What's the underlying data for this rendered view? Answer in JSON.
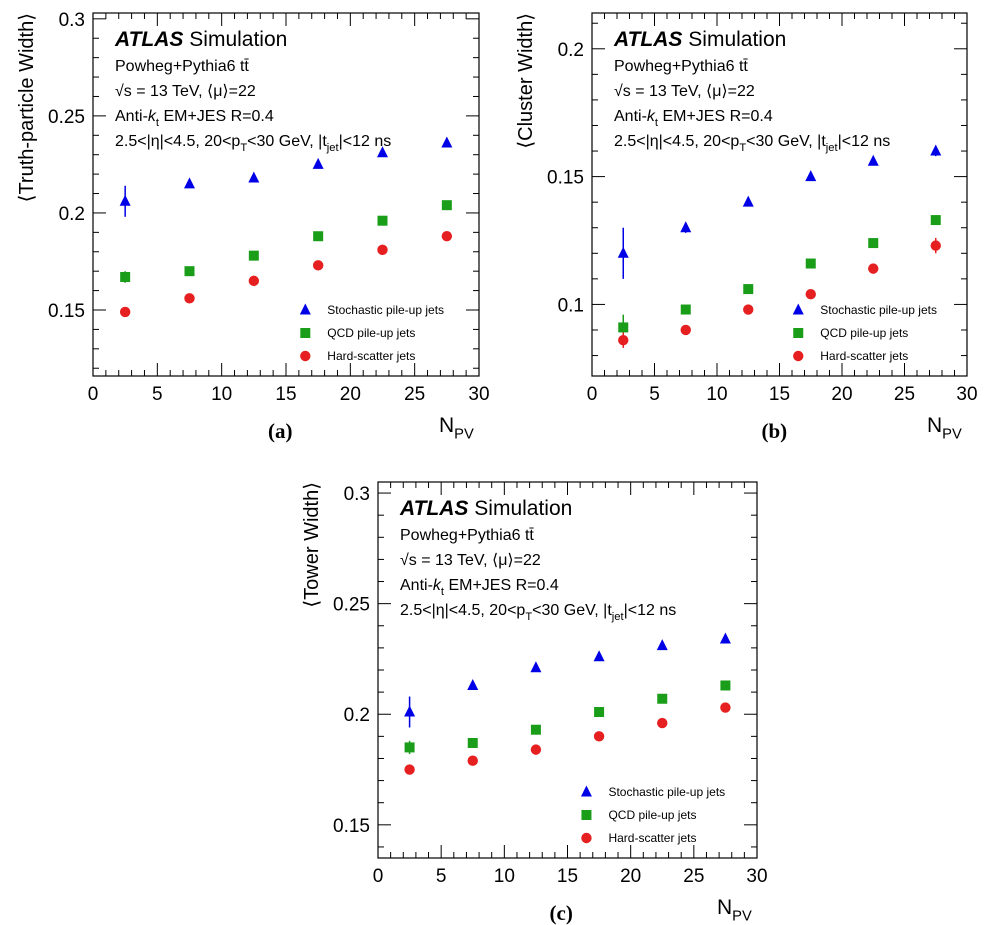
{
  "chart_data": [
    {
      "type": "scatter",
      "panel_label": "(a)",
      "ylabel": "⟨Truth-particle Width⟩",
      "xlabel": "N",
      "xlabel_sub": "PV",
      "xlim": [
        0,
        30
      ],
      "ylim": [
        0.116,
        0.303
      ],
      "yticks": [
        "0.15",
        "0.2",
        "0.25",
        "0.3"
      ],
      "ytick_values": [
        0.15,
        0.2,
        0.25,
        0.3
      ],
      "x": [
        2.5,
        7.5,
        12.5,
        17.5,
        22.5,
        27.5
      ],
      "series": [
        {
          "name": "Stochastic pile-up jets",
          "marker": "triangle",
          "color": "#0000e6",
          "values": [
            0.206,
            0.215,
            0.218,
            0.225,
            0.231,
            0.236
          ],
          "errors": [
            0.008,
            0.001,
            0.001,
            0.001,
            0.001,
            0.001
          ]
        },
        {
          "name": "QCD pile-up jets",
          "marker": "square",
          "color": "#1a9e1a",
          "values": [
            0.167,
            0.17,
            0.178,
            0.188,
            0.196,
            0.204
          ],
          "errors": [
            0.003,
            0.001,
            0.001,
            0.001,
            0.001,
            0.001
          ]
        },
        {
          "name": "Hard-scatter jets",
          "marker": "circle",
          "color": "#e62020",
          "values": [
            0.149,
            0.156,
            0.165,
            0.173,
            0.181,
            0.188
          ],
          "errors": [
            0.001,
            0.001,
            0.001,
            0.001,
            0.001,
            0.001
          ]
        }
      ],
      "legend": "bottom-right"
    },
    {
      "type": "scatter",
      "panel_label": "(b)",
      "ylabel": "⟨Cluster Width⟩",
      "xlabel": "N",
      "xlabel_sub": "PV",
      "xlim": [
        0,
        30
      ],
      "ylim": [
        0.072,
        0.214
      ],
      "yticks": [
        "0.1",
        "0.15",
        "0.2"
      ],
      "ytick_values": [
        0.1,
        0.15,
        0.2
      ],
      "x": [
        2.5,
        7.5,
        12.5,
        17.5,
        22.5,
        27.5
      ],
      "series": [
        {
          "name": "Stochastic pile-up jets",
          "marker": "triangle",
          "color": "#0000e6",
          "values": [
            0.12,
            0.13,
            0.14,
            0.15,
            0.156,
            0.16
          ],
          "errors": [
            0.01,
            0.002,
            0.001,
            0.001,
            0.001,
            0.002
          ]
        },
        {
          "name": "QCD pile-up jets",
          "marker": "square",
          "color": "#1a9e1a",
          "values": [
            0.091,
            0.098,
            0.106,
            0.116,
            0.124,
            0.133
          ],
          "errors": [
            0.005,
            0.001,
            0.001,
            0.001,
            0.001,
            0.001
          ]
        },
        {
          "name": "Hard-scatter jets",
          "marker": "circle",
          "color": "#e62020",
          "values": [
            0.086,
            0.09,
            0.098,
            0.104,
            0.114,
            0.123
          ],
          "errors": [
            0.003,
            0.001,
            0.001,
            0.001,
            0.001,
            0.003
          ]
        }
      ],
      "legend": "bottom-right"
    },
    {
      "type": "scatter",
      "panel_label": "(c)",
      "ylabel": "⟨Tower Width⟩",
      "xlabel": "N",
      "xlabel_sub": "PV",
      "xlim": [
        0,
        30
      ],
      "ylim": [
        0.135,
        0.305
      ],
      "yticks": [
        "0.15",
        "0.2",
        "0.25",
        "0.3"
      ],
      "ytick_values": [
        0.15,
        0.2,
        0.25,
        0.3
      ],
      "x": [
        2.5,
        7.5,
        12.5,
        17.5,
        22.5,
        27.5
      ],
      "series": [
        {
          "name": "Stochastic pile-up jets",
          "marker": "triangle",
          "color": "#0000e6",
          "values": [
            0.201,
            0.213,
            0.221,
            0.226,
            0.231,
            0.234
          ],
          "errors": [
            0.007,
            0.001,
            0.001,
            0.001,
            0.001,
            0.001
          ]
        },
        {
          "name": "QCD pile-up jets",
          "marker": "square",
          "color": "#1a9e1a",
          "values": [
            0.185,
            0.187,
            0.193,
            0.201,
            0.207,
            0.213
          ],
          "errors": [
            0.003,
            0.001,
            0.001,
            0.001,
            0.001,
            0.001
          ]
        },
        {
          "name": "Hard-scatter jets",
          "marker": "circle",
          "color": "#e62020",
          "values": [
            0.175,
            0.179,
            0.184,
            0.19,
            0.196,
            0.203
          ],
          "errors": [
            0.001,
            0.001,
            0.001,
            0.001,
            0.001,
            0.001
          ]
        }
      ],
      "legend": "bottom-right"
    }
  ],
  "labels": {
    "atlas": "ATLAS",
    "simulation": "Simulation",
    "generator": "Powheg+Pythia6 tt̄",
    "energy": "√s = 13 TeV, ⟨μ⟩=22",
    "algorithm_pre": "Anti-",
    "algorithm_k": "k",
    "algorithm_sub": "t",
    "algorithm_post": " EM+JES R=0.4",
    "sel_1": "2.5<|η|<4.5, 20<p",
    "sel_sub1": "T",
    "sel_2": "<30 GeV, |t",
    "sel_sub2": "jet",
    "sel_3": "|<12 ns"
  },
  "xticks": [
    "0",
    "5",
    "10",
    "15",
    "20",
    "25",
    "30"
  ]
}
